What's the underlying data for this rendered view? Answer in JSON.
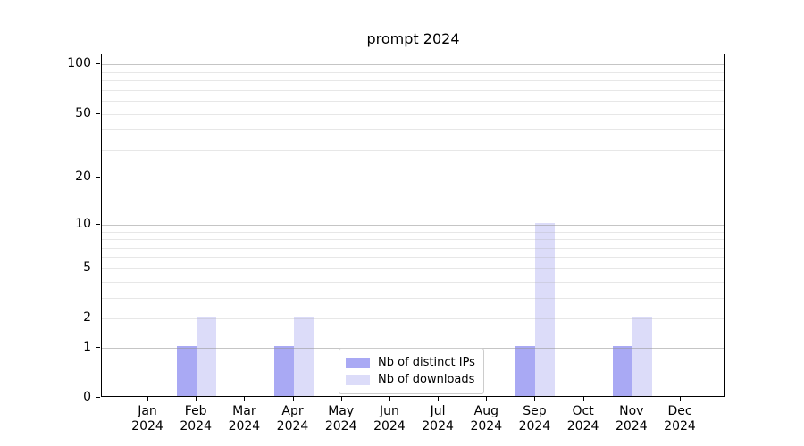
{
  "chart_data": {
    "type": "bar",
    "title": "prompt 2024",
    "categories": [
      "Jan",
      "Feb",
      "Mar",
      "Apr",
      "May",
      "Jun",
      "Jul",
      "Aug",
      "Sep",
      "Oct",
      "Nov",
      "Dec"
    ],
    "year_label": "2024",
    "series": [
      {
        "name": "Nb of distinct IPs",
        "color": "#a9a9f4",
        "values": [
          0,
          1,
          0,
          1,
          0,
          0,
          0,
          0,
          1,
          0,
          1,
          0
        ]
      },
      {
        "name": "Nb of downloads",
        "color": "#dcdcf9",
        "values": [
          0,
          2,
          0,
          2,
          0,
          0,
          0,
          0,
          10,
          0,
          2,
          0
        ]
      }
    ],
    "yticks": [
      0,
      1,
      2,
      5,
      10,
      20,
      50,
      100
    ],
    "major_grid_values": [
      1,
      10,
      100
    ],
    "minor_grid_values": [
      2,
      3,
      4,
      5,
      6,
      7,
      8,
      9,
      20,
      30,
      40,
      50,
      60,
      70,
      80,
      90
    ],
    "yscale": "log10(value+1)",
    "ylim": [
      0,
      115
    ],
    "xlabel": "",
    "ylabel": "",
    "grid": true,
    "legend_position": "lower center",
    "frame_color": "#000000",
    "background_color": "#ffffff"
  }
}
